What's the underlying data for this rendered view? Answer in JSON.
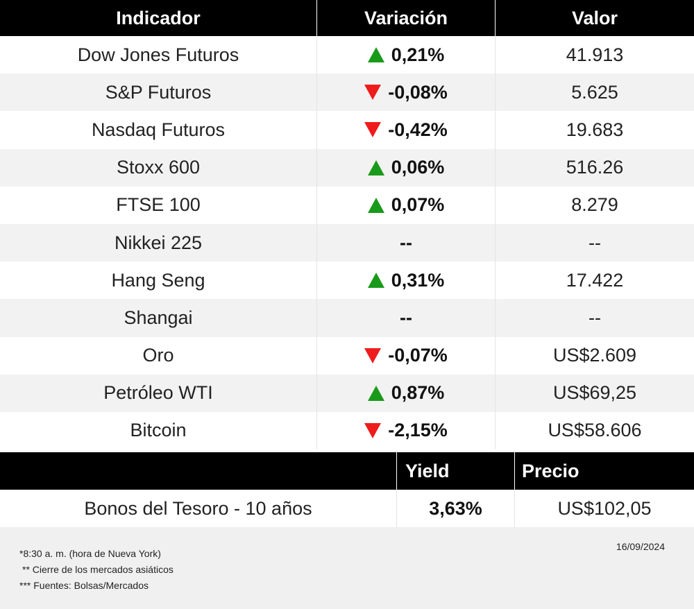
{
  "header": {
    "indicator": "Indicador",
    "variation": "Variación",
    "value": "Valor"
  },
  "rows": [
    {
      "name": "Dow Jones Futuros",
      "dir": "up",
      "change": "0,21%",
      "value": "41.913"
    },
    {
      "name": "S&P Futuros",
      "dir": "down",
      "change": "-0,08%",
      "value": "5.625"
    },
    {
      "name": "Nasdaq Futuros",
      "dir": "down",
      "change": "-0,42%",
      "value": "19.683"
    },
    {
      "name": "Stoxx 600",
      "dir": "up",
      "change": "0,06%",
      "value": "516.26"
    },
    {
      "name": "FTSE 100",
      "dir": "up",
      "change": "0,07%",
      "value": "8.279"
    },
    {
      "name": "Nikkei 225",
      "dir": "none",
      "change": "--",
      "value": "--"
    },
    {
      "name": "Hang Seng",
      "dir": "up",
      "change": "0,31%",
      "value": "17.422"
    },
    {
      "name": "Shangai",
      "dir": "none",
      "change": "--",
      "value": "--"
    },
    {
      "name": "Oro",
      "dir": "down",
      "change": "-0,07%",
      "value": "US$2.609"
    },
    {
      "name": "Petróleo WTI",
      "dir": "up",
      "change": "0,87%",
      "value": "US$69,25"
    },
    {
      "name": "Bitcoin",
      "dir": "down",
      "change": "-2,15%",
      "value": "US$58.606"
    }
  ],
  "bonds": {
    "yield_label": "Yield",
    "price_label": "Precio",
    "name": "Bonos del Tesoro - 10 años",
    "yield": "3,63%",
    "price": "US$102,05"
  },
  "footer": {
    "notes": [
      "*8:30 a. m. (hora de Nueva York)",
      "** Cierre de los mercados asiáticos",
      "*** Fuentes: Bolsas/Mercados"
    ],
    "date": "16/09/2024"
  },
  "colors": {
    "up": "#1a9a1a",
    "down": "#ee1c1c"
  }
}
